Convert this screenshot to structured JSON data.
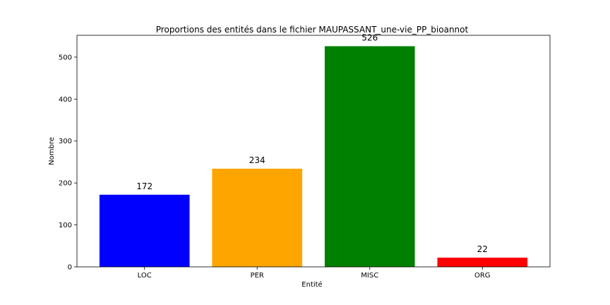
{
  "chart_data": {
    "type": "bar",
    "title": "Proportions des entités dans le fichier MAUPASSANT_une-vie_PP_bioannot",
    "xlabel": "Entité",
    "ylabel": "Nombre",
    "categories": [
      "LOC",
      "PER",
      "MISC",
      "ORG"
    ],
    "values": [
      172,
      234,
      526,
      22
    ],
    "colors": [
      "#0000ff",
      "#ffa500",
      "#008000",
      "#ff0000"
    ],
    "ylim": [
      0,
      552
    ],
    "yticks": [
      0,
      100,
      200,
      300,
      400,
      500
    ],
    "grid": false,
    "legend": "none"
  }
}
